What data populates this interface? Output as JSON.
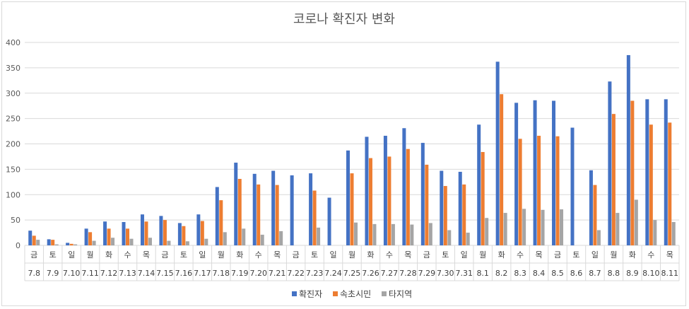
{
  "chart_data": {
    "type": "bar",
    "title": "코로나 확진자 변화",
    "xlabel": "",
    "ylabel": "",
    "ylim": [
      0,
      400
    ],
    "yticks": [
      0,
      50,
      100,
      150,
      200,
      250,
      300,
      350,
      400
    ],
    "grid": true,
    "legend_position": "bottom",
    "categories": [
      "7.8",
      "7.9",
      "7.10",
      "7.11",
      "7.12",
      "7.13",
      "7.14",
      "7.15",
      "7.16",
      "7.17",
      "7.18",
      "7.19",
      "7.20",
      "7.21",
      "7.22",
      "7.23",
      "7.24",
      "7.25",
      "7.26",
      "7.27",
      "7.28",
      "7.29",
      "7.30",
      "7.31",
      "8.1",
      "8.2",
      "8.3",
      "8.4",
      "8.5",
      "8.6",
      "8.7",
      "8.8",
      "8.9",
      "8.10",
      "8.11"
    ],
    "weekdays": [
      "금",
      "토",
      "일",
      "월",
      "화",
      "수",
      "목",
      "금",
      "토",
      "일",
      "월",
      "화",
      "수",
      "목",
      "금",
      "토",
      "일",
      "월",
      "화",
      "수",
      "목",
      "금",
      "토",
      "일",
      "월",
      "화",
      "수",
      "목",
      "금",
      "토",
      "일",
      "월",
      "화",
      "수",
      "목"
    ],
    "series": [
      {
        "name": "확진자",
        "color": "#4472c4",
        "values": [
          29,
          12,
          5,
          33,
          47,
          46,
          61,
          58,
          44,
          61,
          115,
          163,
          141,
          147,
          138,
          142,
          94,
          187,
          214,
          216,
          231,
          202,
          147,
          145,
          238,
          362,
          281,
          286,
          285,
          232,
          148,
          323,
          375,
          288,
          288
        ]
      },
      {
        "name": "속초시민",
        "color": "#ed7d31",
        "values": [
          19,
          11,
          3,
          26,
          33,
          33,
          47,
          50,
          38,
          48,
          89,
          131,
          120,
          119,
          0,
          108,
          0,
          142,
          172,
          175,
          190,
          159,
          117,
          120,
          184,
          298,
          210,
          216,
          215,
          0,
          119,
          259,
          285,
          238,
          242
        ]
      },
      {
        "name": "타지역",
        "color": "#a5a5a5",
        "values": [
          11,
          2,
          2,
          9,
          15,
          13,
          15,
          9,
          8,
          13,
          26,
          33,
          21,
          28,
          0,
          35,
          0,
          45,
          42,
          42,
          41,
          44,
          30,
          25,
          54,
          64,
          72,
          70,
          71,
          0,
          30,
          64,
          90,
          50,
          46
        ]
      }
    ]
  }
}
